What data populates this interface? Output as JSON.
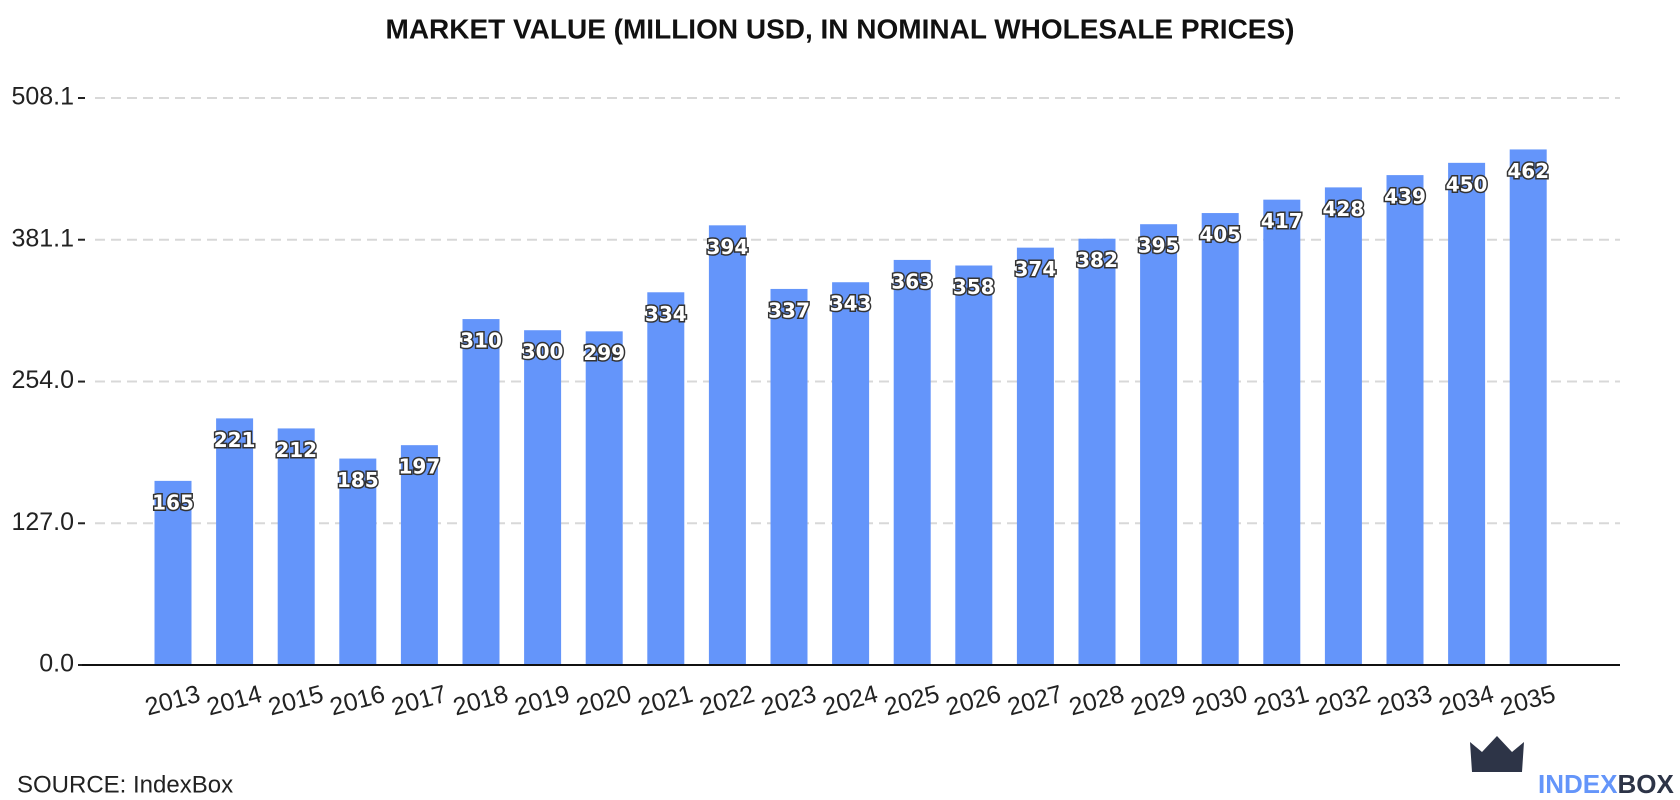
{
  "chart_data": {
    "type": "bar",
    "title": "MARKET VALUE (MILLION USD, IN NOMINAL WHOLESALE PRICES)",
    "categories": [
      "2013",
      "2014",
      "2015",
      "2016",
      "2017",
      "2018",
      "2019",
      "2020",
      "2021",
      "2022",
      "2023",
      "2024",
      "2025",
      "2026",
      "2027",
      "2028",
      "2029",
      "2030",
      "2031",
      "2032",
      "2033",
      "2034",
      "2035"
    ],
    "values": [
      165,
      221,
      212,
      185,
      197,
      310,
      300,
      299,
      334,
      394,
      337,
      343,
      363,
      358,
      374,
      382,
      395,
      405,
      417,
      428,
      439,
      450,
      462
    ],
    "color": "#6495fa",
    "ylim": [
      0,
      508.1
    ],
    "yticks": [
      {
        "value": 0,
        "label": "0.0"
      },
      {
        "value": 127,
        "label": "127.0"
      },
      {
        "value": 254,
        "label": "254.0"
      },
      381.1,
      508.1
    ],
    "grid": true
  },
  "source": "SOURCE: IndexBox",
  "brand": [
    "INDEX",
    "BOX"
  ]
}
